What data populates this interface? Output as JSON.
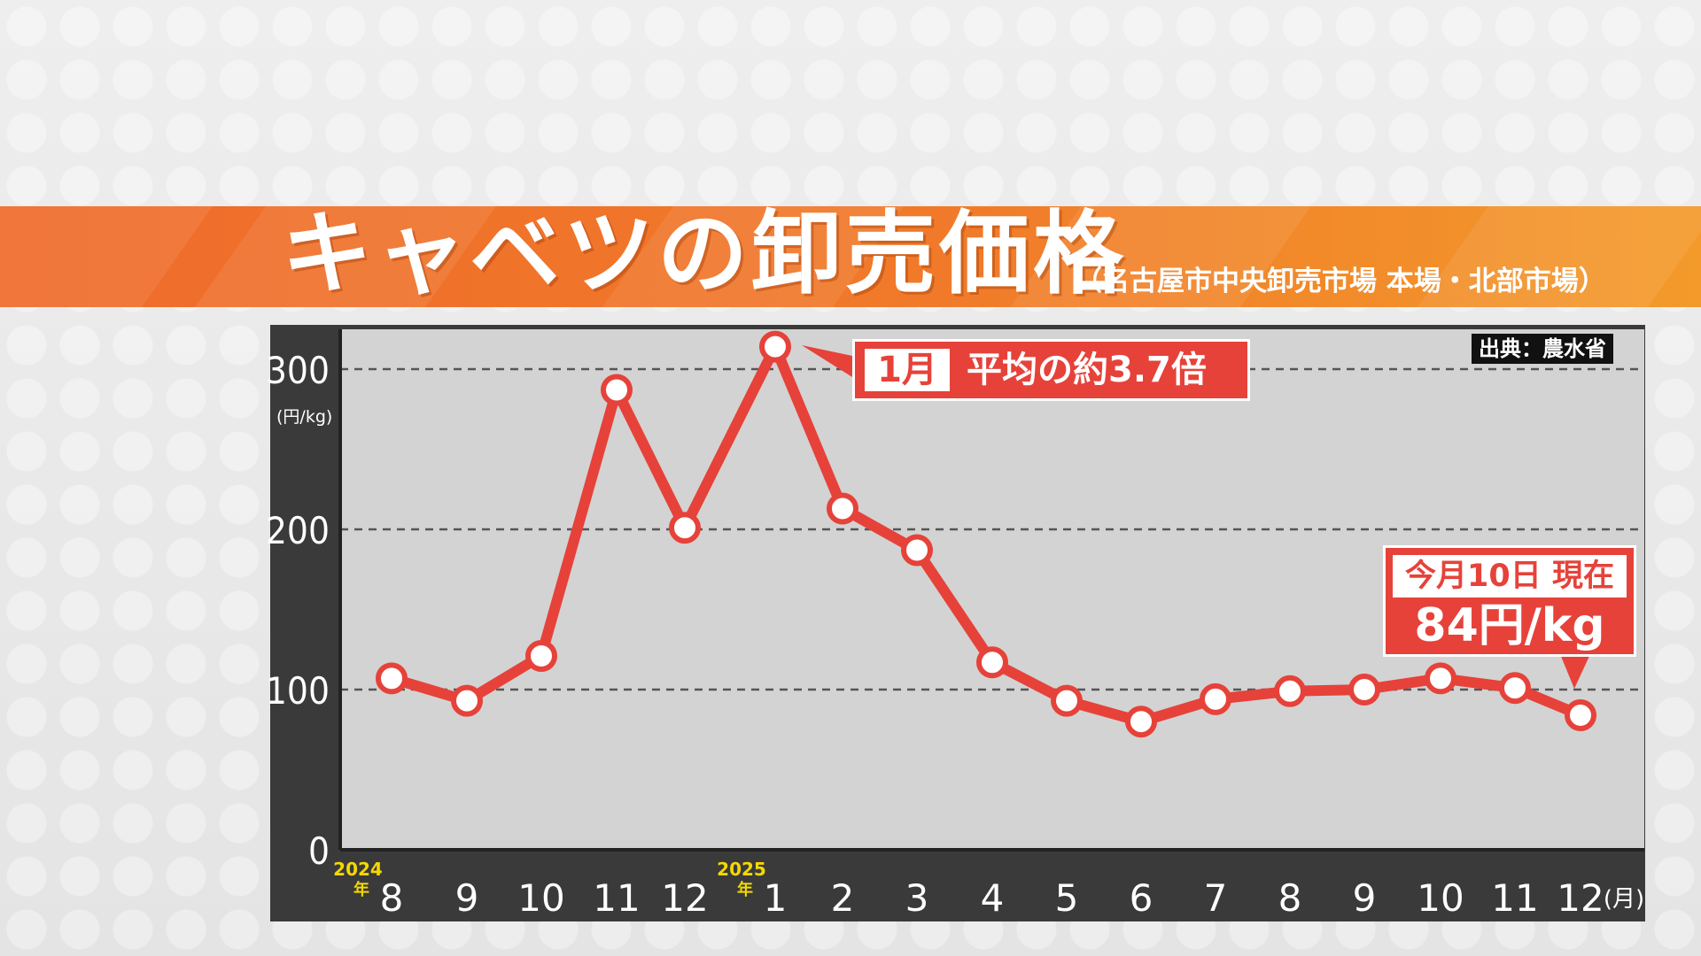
{
  "header": {
    "title": "キャベツの卸売価格",
    "subtitle": "（名古屋市中央卸売市場 本場・北部市場）"
  },
  "source_label": "出典：農水省",
  "callouts": {
    "peak_month": "1月",
    "peak_text": "平均の約3.7倍",
    "current_date": "今月10日 現在",
    "current_price": "84円/kg"
  },
  "colors": {
    "accent": "#e6423a",
    "title_band": "#ef6b2b",
    "frame": "#3a3a3a",
    "plot_bg": "#d3d3d3",
    "year_label": "#f5d800"
  },
  "chart_data": {
    "type": "line",
    "title": "キャベツの卸売価格",
    "ylabel": "(円/kg)",
    "xlabel": "(月)",
    "ylim": [
      0,
      300
    ],
    "yticks": [
      0,
      100,
      200,
      300
    ],
    "grid": true,
    "year_labels": [
      {
        "text": "2024",
        "suffix": "年",
        "before_index": 0
      },
      {
        "text": "2025",
        "suffix": "年",
        "before_index": 5
      }
    ],
    "categories": [
      "8",
      "9",
      "10",
      "11",
      "12",
      "1",
      "2",
      "3",
      "4",
      "5",
      "6",
      "7",
      "8",
      "9",
      "10",
      "11",
      "12"
    ],
    "x_unit": "(月)",
    "series": [
      {
        "values": [
          107,
          93,
          121,
          287,
          201,
          314,
          213,
          187,
          117,
          93,
          80,
          94,
          99,
          100,
          107,
          101,
          84
        ]
      }
    ]
  }
}
